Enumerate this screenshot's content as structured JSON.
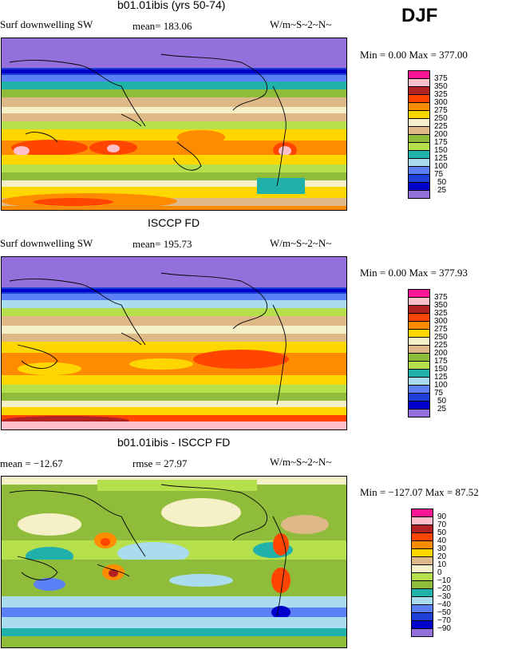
{
  "season": "DJF",
  "panels": [
    {
      "title": "b01.01ibis (yrs 50-74)",
      "left_text": "Surf downwelling SW",
      "mid_text": "mean= 183.06",
      "units": "W/m~S~2~N~",
      "minmax": "Min =    0.00 Max = 377.00",
      "levels": [
        "375",
        "350",
        "325",
        "300",
        "275",
        "250",
        "225",
        "200",
        "175",
        "150",
        "125",
        "100",
        "75",
        "50",
        "25"
      ],
      "colors": [
        "#ff1493",
        "#ffc0cb",
        "#b22222",
        "#ff4500",
        "#ff8c00",
        "#ffd700",
        "#f5f0c8",
        "#deb887",
        "#8fbc3a",
        "#b5e04b",
        "#20b2aa",
        "#aadcf0",
        "#5b7ff5",
        "#1e3fd8",
        "#0000cd",
        "#9370db"
      ]
    },
    {
      "title": "ISCCP FD",
      "left_text": "Surf downwelling SW",
      "mid_text": "mean= 195.73",
      "units": "W/m~S~2~N~",
      "minmax": "Min =    0.00 Max = 377.93",
      "levels": [
        "375",
        "350",
        "325",
        "300",
        "275",
        "250",
        "225",
        "200",
        "175",
        "150",
        "125",
        "100",
        "75",
        "50",
        "25"
      ],
      "colors": [
        "#ff1493",
        "#ffc0cb",
        "#b22222",
        "#ff4500",
        "#ff8c00",
        "#ffd700",
        "#f5f0c8",
        "#deb887",
        "#8fbc3a",
        "#b5e04b",
        "#20b2aa",
        "#aadcf0",
        "#5b7ff5",
        "#1e3fd8",
        "#0000cd",
        "#9370db"
      ]
    },
    {
      "title": "b01.01ibis - ISCCP FD",
      "left_text": "mean = −12.67",
      "mid_text": "rmse =   27.97",
      "units": "W/m~S~2~N~",
      "minmax": "Min = −127.07 Max =  87.52",
      "levels": [
        "90",
        "70",
        "50",
        "40",
        "30",
        "20",
        "10",
        "0",
        "−10",
        "−20",
        "−30",
        "−40",
        "−50",
        "−70",
        "−90"
      ],
      "colors": [
        "#ff1493",
        "#ffc0cb",
        "#b22222",
        "#ff4500",
        "#ff8c00",
        "#ffd700",
        "#deb887",
        "#f5f0c8",
        "#b5e04b",
        "#8fbc3a",
        "#20b2aa",
        "#aadcf0",
        "#5b7ff5",
        "#1e3fd8",
        "#0000cd",
        "#9370db"
      ]
    }
  ],
  "chart_data": [
    {
      "type": "heatmap",
      "title": "b01.01ibis (yrs 50-74)",
      "variable": "Surf downwelling SW",
      "units": "W/m~S~2~N~",
      "mean": 183.06,
      "min": 0.0,
      "max": 377.0,
      "contour_levels": [
        25,
        50,
        75,
        100,
        125,
        150,
        175,
        200,
        225,
        250,
        275,
        300,
        325,
        350,
        375
      ]
    },
    {
      "type": "heatmap",
      "title": "ISCCP FD",
      "variable": "Surf downwelling SW",
      "units": "W/m~S~2~N~",
      "mean": 195.73,
      "min": 0.0,
      "max": 377.93,
      "contour_levels": [
        25,
        50,
        75,
        100,
        125,
        150,
        175,
        200,
        225,
        250,
        275,
        300,
        325,
        350,
        375
      ]
    },
    {
      "type": "heatmap",
      "title": "b01.01ibis - ISCCP FD",
      "units": "W/m~S~2~N~",
      "mean": -12.67,
      "rmse": 27.97,
      "min": -127.07,
      "max": 87.52,
      "contour_levels": [
        -90,
        -70,
        -50,
        -40,
        -30,
        -20,
        -10,
        0,
        10,
        20,
        30,
        40,
        50,
        70,
        90
      ]
    }
  ]
}
